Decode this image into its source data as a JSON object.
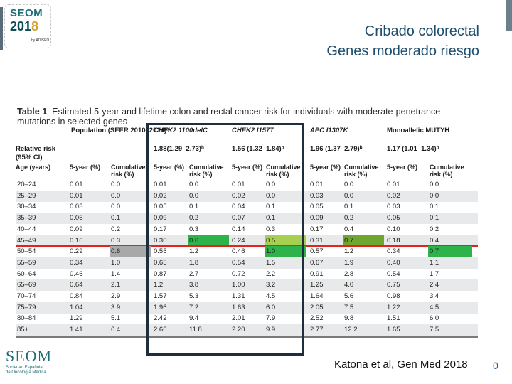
{
  "slide": {
    "title_line1": "Cribado colorectal",
    "title_line2": "Genes moderado riesgo",
    "citation": "Katona et al, Gen Med 2018",
    "page_number": "0"
  },
  "logos": {
    "top_name": "SEOM",
    "top_year_prefix": "201",
    "top_year_suffix": "8",
    "top_byline": "by ADISEO",
    "bottom_name": "SEOM",
    "bottom_sub1": "Sociedad Española",
    "bottom_sub2": "de Oncología Médica"
  },
  "table": {
    "caption_label": "Table 1",
    "caption_text": "Estimated 5-year and lifetime colon and rectal cancer risk for individuals with moderate-penetrance mutations in selected genes",
    "population_header": "Population (SEER 2010–2014)ᵃ",
    "relative_risk_label": "Relative risk (95% CI)",
    "age_label": "Age (years)",
    "groups": [
      {
        "name": "CHEK2 1100delC",
        "rr": "1.88(1.29–2.73)ᵇ"
      },
      {
        "name": "CHEK2 I157T",
        "rr": "1.56 (1.32–1.84)ᵇ"
      },
      {
        "name": "APC I1307K",
        "rr": "1.96 (1.37–2.79)ᵇ"
      },
      {
        "name": "Monoallelic MUTYH",
        "rr": "1.17 (1.01–1.34)ᵇ"
      }
    ],
    "subheaders": [
      "5-year (%)",
      "Cumulative risk (%)",
      "5-year (%)",
      "Cumulative risk (%)",
      "5-year (%)",
      "Cumulative risk (%)",
      "5-year (%)",
      "Cumulative risk (%)",
      "5-year (%)",
      "Cumulative risk (%)"
    ],
    "rows": [
      {
        "age": "20–24",
        "v": [
          "0.01",
          "0.0",
          "0.01",
          "0.0",
          "0.01",
          "0.0",
          "0.01",
          "0.0",
          "0.01",
          "0.0"
        ]
      },
      {
        "age": "25–29",
        "v": [
          "0.01",
          "0.0",
          "0.02",
          "0.0",
          "0.02",
          "0.0",
          "0.03",
          "0.0",
          "0.02",
          "0.0"
        ]
      },
      {
        "age": "30–34",
        "v": [
          "0.03",
          "0.0",
          "0.05",
          "0.1",
          "0.04",
          "0.1",
          "0.05",
          "0.1",
          "0.03",
          "0.1"
        ]
      },
      {
        "age": "35–39",
        "v": [
          "0.05",
          "0.1",
          "0.09",
          "0.2",
          "0.07",
          "0.1",
          "0.09",
          "0.2",
          "0.05",
          "0.1"
        ]
      },
      {
        "age": "40–44",
        "v": [
          "0.09",
          "0.2",
          "0.17",
          "0.3",
          "0.14",
          "0.3",
          "0.17",
          "0.4",
          "0.10",
          "0.2"
        ]
      },
      {
        "age": "45–49",
        "v": [
          "0.16",
          "0.3",
          "0.30",
          "0.6",
          "0.24",
          "0.5",
          "0.31",
          "0.7",
          "0.18",
          "0.4"
        ]
      },
      {
        "age": "50–54",
        "v": [
          "0.29",
          "0.6",
          "0.55",
          "1.2",
          "0.46",
          "1.0",
          "0.57",
          "1.2",
          "0.34",
          "0.7"
        ]
      },
      {
        "age": "55–59",
        "v": [
          "0.34",
          "1.0",
          "0.65",
          "1.8",
          "0.54",
          "1.5",
          "0.67",
          "1.9",
          "0.40",
          "1.1"
        ]
      },
      {
        "age": "60–64",
        "v": [
          "0.46",
          "1.4",
          "0.87",
          "2.7",
          "0.72",
          "2.2",
          "0.91",
          "2.8",
          "0.54",
          "1.7"
        ]
      },
      {
        "age": "65–69",
        "v": [
          "0.64",
          "2.1",
          "1.2",
          "3.8",
          "1.00",
          "3.2",
          "1.25",
          "4.0",
          "0.75",
          "2.4"
        ]
      },
      {
        "age": "70–74",
        "v": [
          "0.84",
          "2.9",
          "1.57",
          "5.3",
          "1.31",
          "4.5",
          "1.64",
          "5.6",
          "0.98",
          "3.4"
        ]
      },
      {
        "age": "75–79",
        "v": [
          "1.04",
          "3.9",
          "1.96",
          "7.2",
          "1.63",
          "6.0",
          "2.05",
          "7.5",
          "1.22",
          "4.5"
        ]
      },
      {
        "age": "80–84",
        "v": [
          "1.29",
          "5.1",
          "2.42",
          "9.4",
          "2.01",
          "7.9",
          "2.52",
          "9.8",
          "1.51",
          "6.0"
        ]
      },
      {
        "age": "85+",
        "v": [
          "1.41",
          "6.4",
          "2.66",
          "11.8",
          "2.20",
          "9.9",
          "2.77",
          "12.2",
          "1.65",
          "7.5"
        ]
      }
    ],
    "highlight_colors": {
      "green": "#2eb34a",
      "light_green": "#a7cf52",
      "olive_green": "#6fa62f",
      "grey": "#a8a8a8",
      "red_line": "#e2241d",
      "emphasis_box": "#1f2e3c"
    }
  }
}
